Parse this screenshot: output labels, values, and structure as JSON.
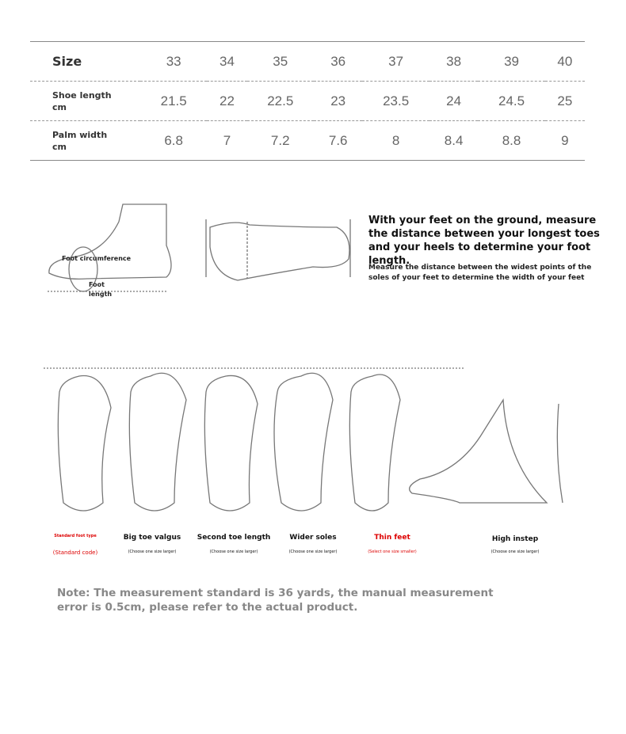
{
  "size_table": {
    "rows": [
      {
        "label": "Size",
        "unit": "",
        "values": [
          "33",
          "34",
          "35",
          "36",
          "37",
          "38",
          "39",
          "40"
        ]
      },
      {
        "label": "Shoe length",
        "unit": "cm",
        "values": [
          "21.5",
          "22",
          "22.5",
          "23",
          "23.5",
          "24",
          "24.5",
          "25"
        ]
      },
      {
        "label": "Palm width",
        "unit": "cm",
        "values": [
          "6.8",
          "7",
          "7.2",
          "7.6",
          "8",
          "8.4",
          "8.8",
          "9"
        ]
      }
    ]
  },
  "measure": {
    "foot_circumference": "Foot circumference",
    "foot_length": "Foot length",
    "instruction_main": "With your feet on the ground, measure the distance between your longest toes and your heels to determine your foot length.",
    "instruction_sub": "Measure the distance between the widest points of the soles of your feet to determine the width of your feet"
  },
  "foot_types": [
    {
      "name": "Standard foot type",
      "advice": "(Standard code)",
      "color": "#dd0000"
    },
    {
      "name": "Big toe valgus",
      "advice": "(Choose one size larger)",
      "color": "#111111"
    },
    {
      "name": "Second toe length",
      "advice": "(Choose one size larger)",
      "color": "#111111"
    },
    {
      "name": "Wider soles",
      "advice": "(Choose one size larger)",
      "color": "#111111"
    },
    {
      "name": "Thin feet",
      "advice": "(Select one size smaller)",
      "color": "#dd0000"
    },
    {
      "name": "High instep",
      "advice": "(Choose one size larger)",
      "color": "#111111"
    }
  ],
  "note": "Note: The measurement standard is 36 yards, the manual measurement error is 0.5cm, please refer to the actual product."
}
